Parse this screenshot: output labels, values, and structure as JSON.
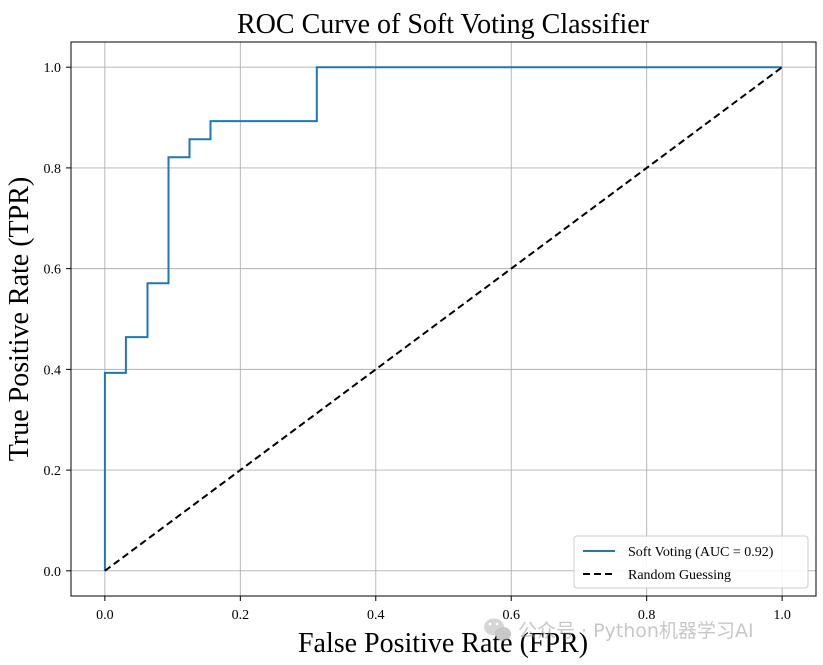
{
  "chart_data": {
    "type": "line",
    "title": "ROC Curve of Soft Voting Classifier",
    "xlabel": "False Positive Rate (FPR)",
    "ylabel": "True Positive Rate (TPR)",
    "xlim": [
      -0.05,
      1.05
    ],
    "ylim": [
      -0.05,
      1.05
    ],
    "grid": true,
    "xticks": [
      0.0,
      0.2,
      0.4,
      0.6,
      0.8,
      1.0
    ],
    "yticks": [
      0.0,
      0.2,
      0.4,
      0.6,
      0.8,
      1.0
    ],
    "xtick_labels": [
      "0.0",
      "0.2",
      "0.4",
      "0.6",
      "0.8",
      "1.0"
    ],
    "ytick_labels": [
      "0.0",
      "0.2",
      "0.4",
      "0.6",
      "0.8",
      "1.0"
    ],
    "legend_position": "lower-right",
    "series": [
      {
        "name": "Soft Voting (AUC = 0.92)",
        "color": "#1f77b4",
        "style": "solid",
        "x": [
          0.0,
          0.0,
          0.031,
          0.031,
          0.063,
          0.063,
          0.094,
          0.094,
          0.125,
          0.125,
          0.156,
          0.156,
          0.313,
          0.313,
          1.0
        ],
        "y": [
          0.0,
          0.393,
          0.393,
          0.464,
          0.464,
          0.571,
          0.571,
          0.821,
          0.821,
          0.857,
          0.857,
          0.893,
          0.893,
          1.0,
          1.0
        ]
      },
      {
        "name": "Random Guessing",
        "color": "#000000",
        "style": "dashed",
        "x": [
          0.0,
          1.0
        ],
        "y": [
          0.0,
          1.0
        ]
      }
    ]
  },
  "watermark": {
    "text": "公众号 · Python机器学习AI",
    "icon": "wechat-icon"
  }
}
